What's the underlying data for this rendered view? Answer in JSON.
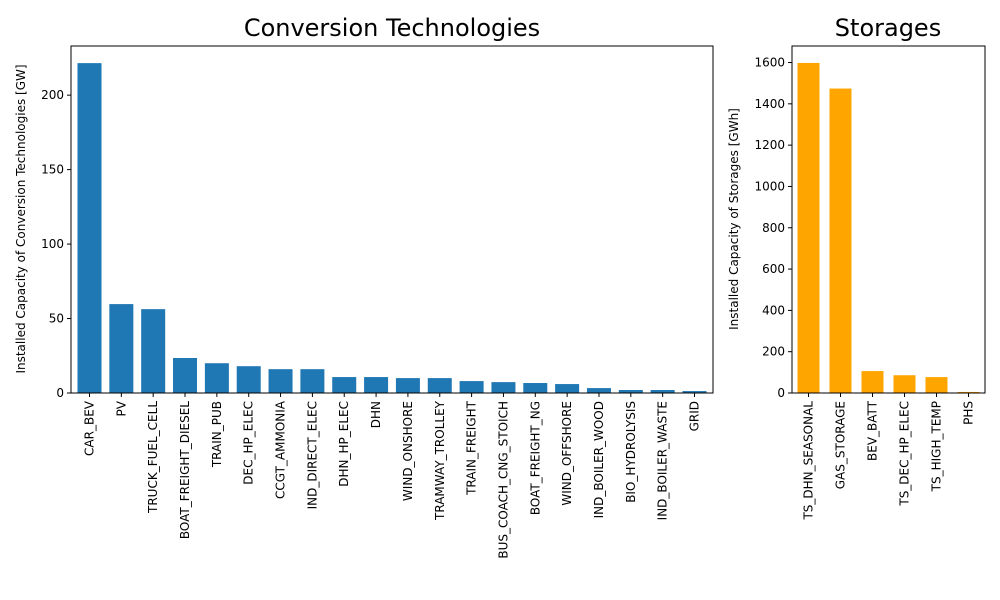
{
  "chart_data": [
    {
      "type": "bar",
      "title": "Conversion Technologies",
      "ylabel": "Installed Capacity of Conversion Technologies [GW]",
      "xlabel": "",
      "ylim": [
        0,
        233
      ],
      "yticks": [
        0,
        50,
        100,
        150,
        200
      ],
      "color": "#1f77b4",
      "categories": [
        "CAR_BEV",
        "PV",
        "TRUCK_FUEL_CELL",
        "BOAT_FREIGHT_DIESEL",
        "TRAIN_PUB",
        "DEC_HP_ELEC",
        "CCGT_AMMONIA",
        "IND_DIRECT_ELEC",
        "DHN_HP_ELEC",
        "DHN",
        "WIND_ONSHORE",
        "TRAMWAY_TROLLEY",
        "TRAIN_FREIGHT",
        "BUS_COACH_CNG_STOICH",
        "BOAT_FREIGHT_NG",
        "WIND_OFFSHORE",
        "IND_BOILER_WOOD",
        "BIO_HYDROLYSIS",
        "IND_BOILER_WASTE",
        "GRID"
      ],
      "values": [
        221.5,
        59.7,
        56.3,
        23.5,
        20.0,
        18.0,
        16.0,
        16.0,
        10.7,
        10.7,
        10.0,
        10.0,
        8.0,
        7.3,
        6.7,
        6.0,
        3.3,
        2.0,
        2.0,
        1.3
      ],
      "grid": false
    },
    {
      "type": "bar",
      "title": "Storages",
      "ylabel": "Installed Capacity of Storages [GWh]",
      "xlabel": "",
      "ylim": [
        0,
        1680
      ],
      "yticks": [
        0,
        200,
        400,
        600,
        800,
        1000,
        1200,
        1400,
        1600
      ],
      "color": "#ffa500",
      "categories": [
        "TS_DHN_SEASONAL",
        "GAS_STORAGE",
        "BEV_BATT",
        "TS_DEC_HP_ELEC",
        "TS_HIGH_TEMP",
        "PHS"
      ],
      "values": [
        1598,
        1474,
        106,
        86,
        77,
        5
      ],
      "grid": false
    }
  ]
}
